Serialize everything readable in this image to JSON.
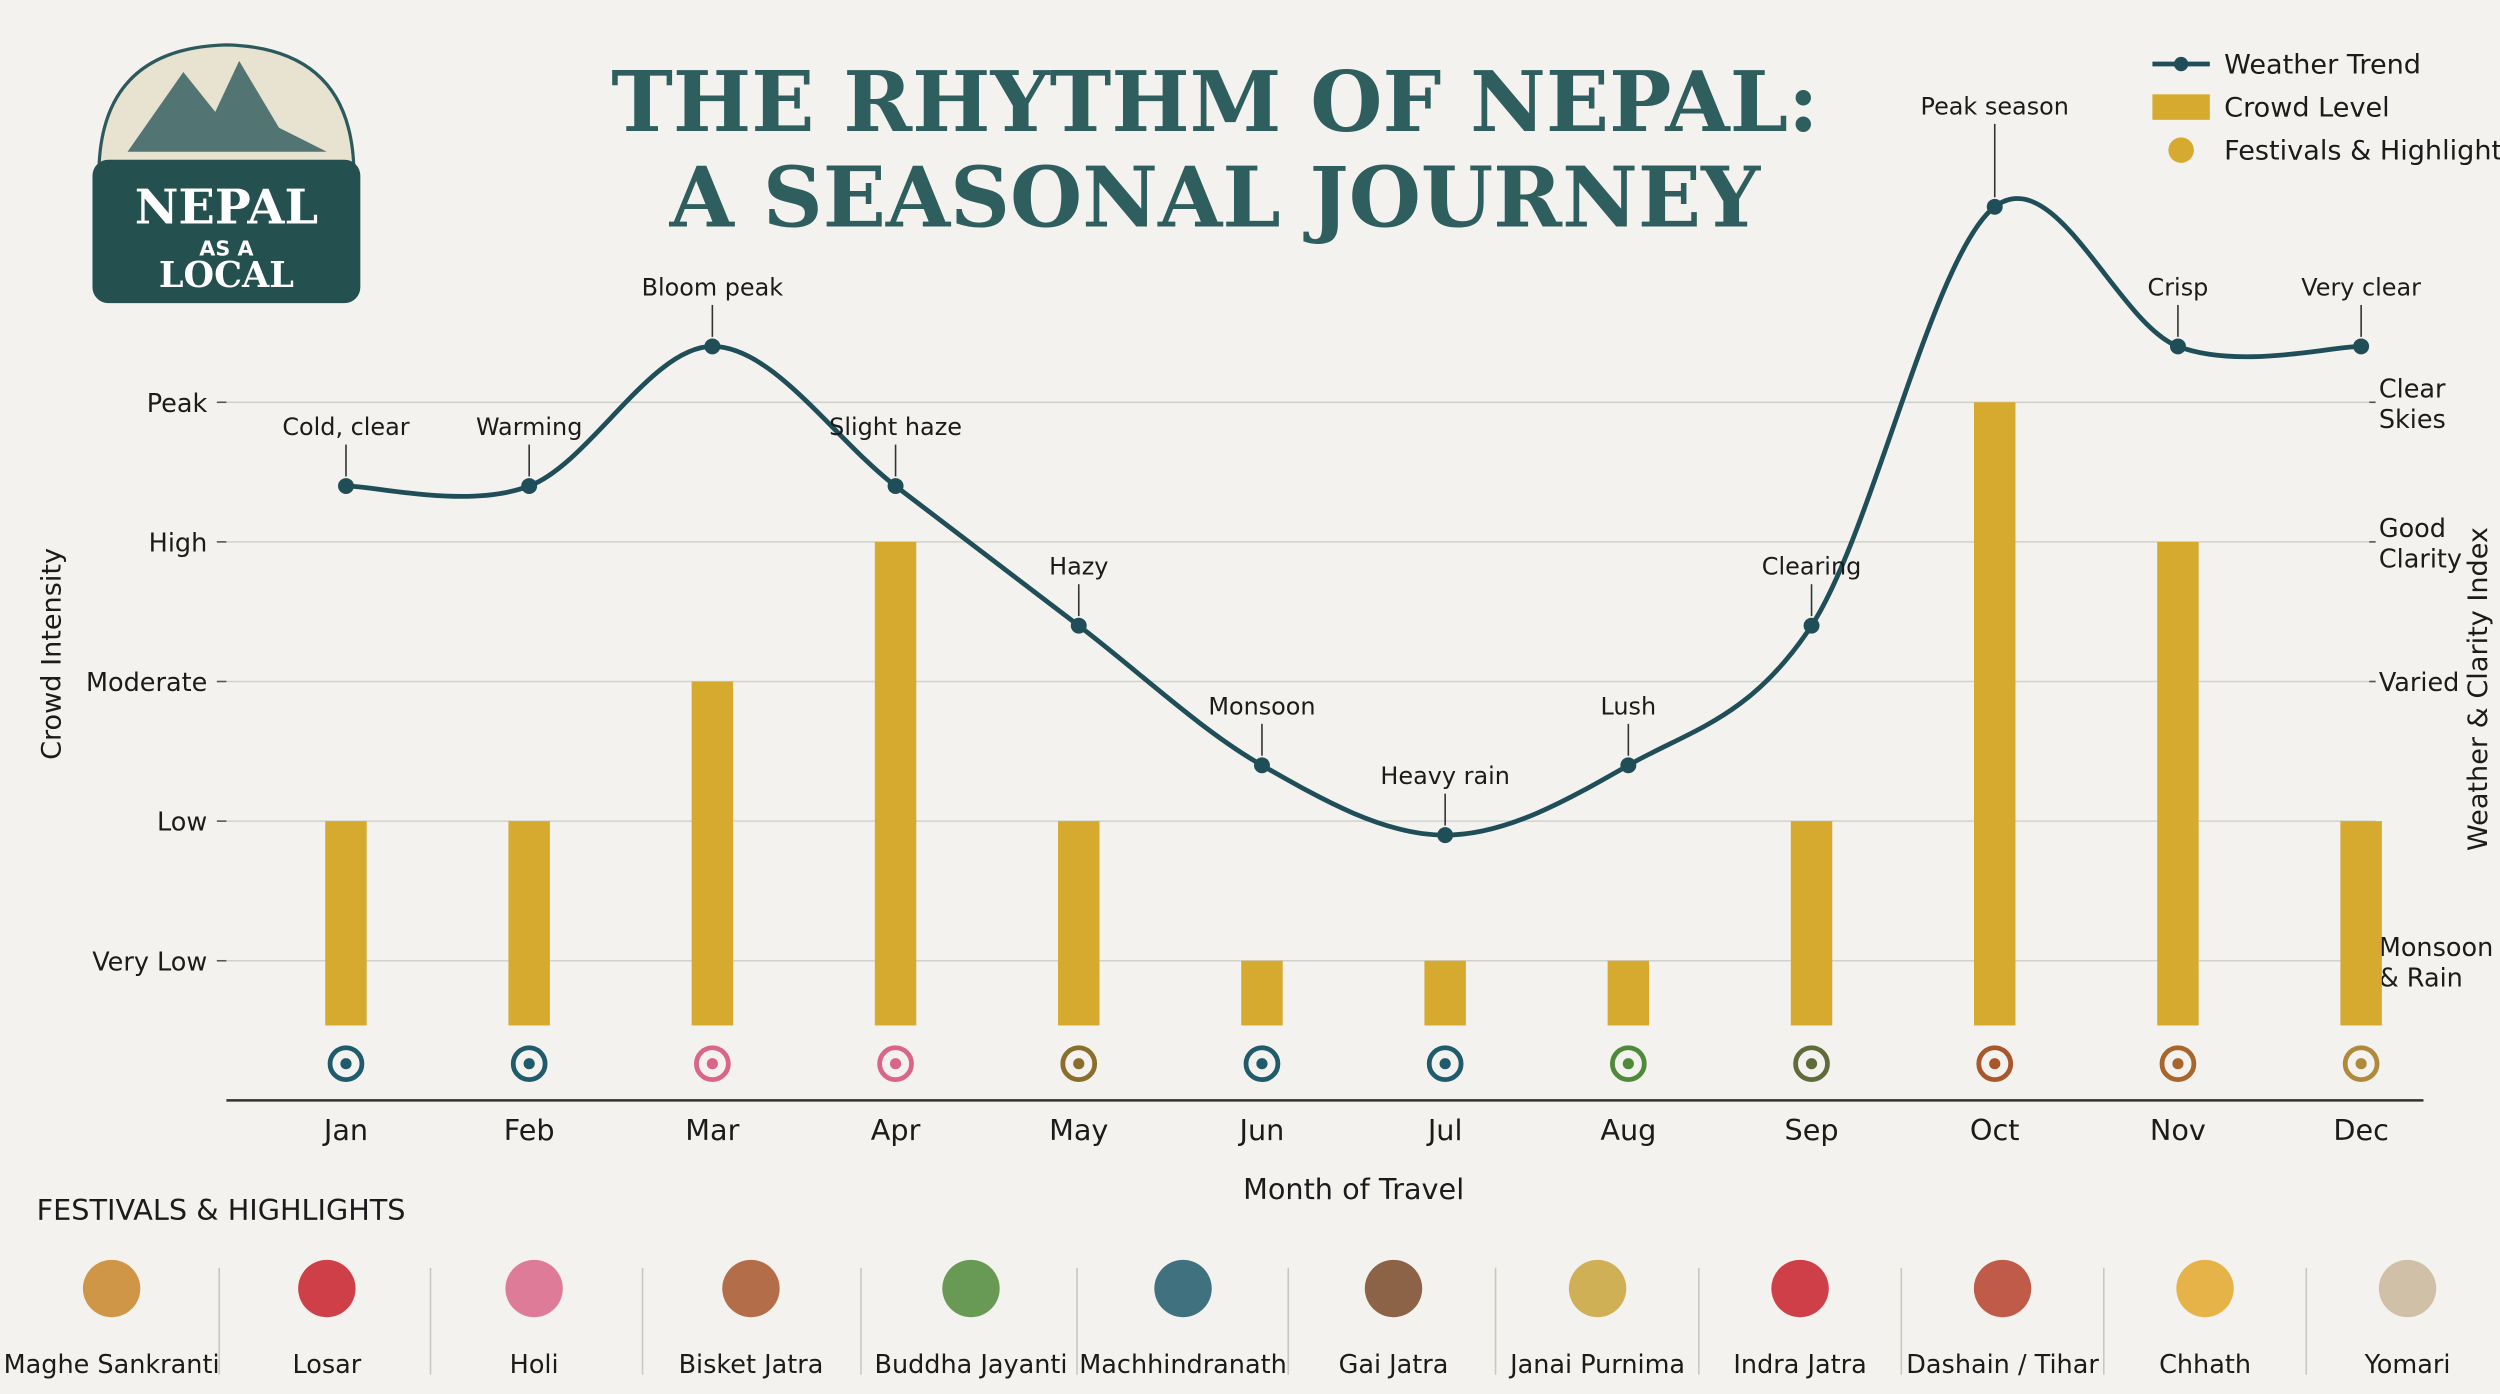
{
  "logo": [
    "NEPAL",
    "AS A",
    "LOCAL"
  ],
  "chart_data": {
    "type": "combo",
    "title": [
      "THE RHYTHM OF NEPAL:",
      "A SEASONAL JOURNEY"
    ],
    "x_label": "Month of Travel",
    "y_label": "Crowd Intensity",
    "y2_label": "Weather & Clarity Index",
    "categories": [
      "Jan",
      "Feb",
      "Mar",
      "Apr",
      "May",
      "Jun",
      "Jul",
      "Aug",
      "Sep",
      "Oct",
      "Nov",
      "Dec"
    ],
    "ylim": [
      0,
      7
    ],
    "yticks": [
      {
        "value": 1,
        "label": "Very Low"
      },
      {
        "value": 2,
        "label": "Low"
      },
      {
        "value": 3,
        "label": "Moderate"
      },
      {
        "value": 4,
        "label": "High"
      },
      {
        "value": 5,
        "label": "Peak"
      }
    ],
    "y2lim": [
      0,
      7
    ],
    "y2ticks": [
      {
        "value": 1,
        "label": "Monsoon & Rain"
      },
      {
        "value": 3,
        "label": "Varied"
      },
      {
        "value": 4,
        "label": "Good Clarity"
      },
      {
        "value": 5,
        "label": "Clear Skies"
      }
    ],
    "grid": true,
    "legend": "top-right",
    "series": [
      {
        "name": "Weather Trend",
        "type": "line",
        "axis": "y2",
        "color": "#1f4e58",
        "values": [
          4.4,
          4.4,
          5.4,
          4.4,
          3.4,
          2.4,
          1.9,
          2.4,
          3.4,
          6.4,
          5.4,
          5.4
        ],
        "annotations": [
          "Cold, clear",
          "Warming",
          "Bloom peak",
          "Slight haze",
          "Hazy",
          "Monsoon",
          "Heavy rain",
          "Lush",
          "Clearing",
          "Peak season",
          "Crisp",
          "Very clear"
        ]
      },
      {
        "name": "Crowd Level",
        "type": "bar",
        "color": "#d6aa2e",
        "values": [
          2,
          2,
          3,
          4,
          2,
          1,
          1,
          1,
          2,
          5,
          4,
          2
        ]
      }
    ],
    "legend_extra": {
      "name": "Festivals & Highlights",
      "color": "#d6aa2e"
    }
  },
  "festivals": {
    "title": "FESTIVALS & HIGHLIGHTS",
    "items": [
      "Maghe Sankranti",
      "Losar",
      "Holi",
      "Bisket Jatra",
      "Buddha Jayanti",
      "Machhindranath",
      "Gai Jatra",
      "Janai Purnima",
      "Indra Jatra",
      "Dashain / Tihar",
      "Chhath",
      "Yomari"
    ]
  }
}
